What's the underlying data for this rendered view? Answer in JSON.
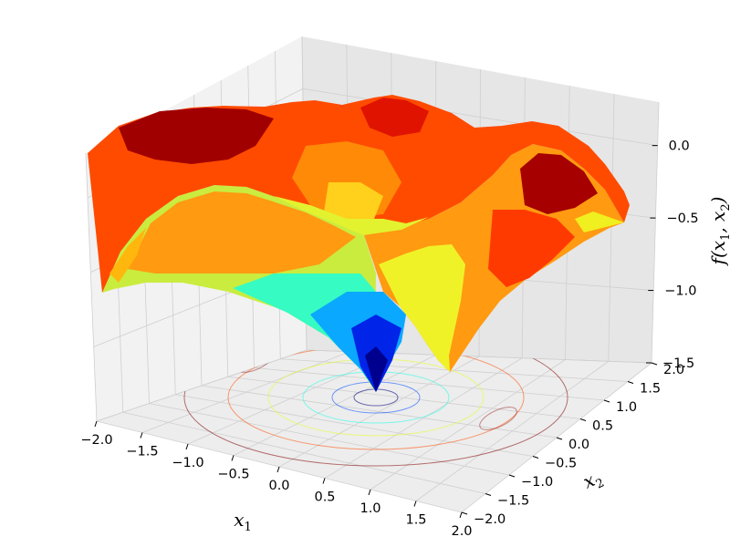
{
  "chart_data": {
    "type": "surface3d",
    "title": "",
    "xlabel": "$x_1$",
    "ylabel": "$x_2$",
    "zlabel": "$f(x_1, x_2)$",
    "xlim": [
      -2.0,
      2.0
    ],
    "ylim": [
      -2.0,
      2.0
    ],
    "zlim": [
      -1.5,
      0.3
    ],
    "x_ticks": [
      "−2.0",
      "−1.5",
      "−1.0",
      "−0.5",
      "0.0",
      "0.5",
      "1.0",
      "1.5",
      "2.0"
    ],
    "y_ticks": [
      "−2.0",
      "−1.5",
      "−1.0",
      "−0.5",
      "0.0",
      "0.5",
      "1.0",
      "1.5",
      "2.0"
    ],
    "z_ticks": [
      "−1.5",
      "−1.0",
      "−0.5",
      "0.0"
    ],
    "surface": {
      "colormap": "jet",
      "min": {
        "x": 0.0,
        "y": 0.0,
        "z": -1.45
      },
      "samples": [
        {
          "x": -2.0,
          "y": -2.0,
          "z": -0.75
        },
        {
          "x": -2.0,
          "y": 0.0,
          "z": -0.05
        },
        {
          "x": -2.0,
          "y": 2.0,
          "z": -0.75
        },
        {
          "x": 0.0,
          "y": -2.0,
          "z": -0.05
        },
        {
          "x": 0.0,
          "y": 2.0,
          "z": -0.05
        },
        {
          "x": 2.0,
          "y": -2.0,
          "z": -0.75
        },
        {
          "x": 2.0,
          "y": 0.0,
          "z": -0.05
        },
        {
          "x": 2.0,
          "y": 2.0,
          "z": -0.75
        },
        {
          "x": -1.2,
          "y": 1.2,
          "z": 0.25
        },
        {
          "x": 1.2,
          "y": -1.2,
          "z": 0.25
        },
        {
          "x": 1.2,
          "y": 1.2,
          "z": -0.3
        },
        {
          "x": -1.2,
          "y": -1.2,
          "z": -0.3
        },
        {
          "x": 1.6,
          "y": -0.6,
          "z": -0.6
        }
      ]
    },
    "contour_projection": {
      "plane_z": -1.5,
      "colormap": "jet",
      "levels": [
        -1.3,
        -1.0,
        -0.7,
        -0.4,
        -0.15,
        0.1
      ]
    },
    "grid": true,
    "view": {
      "elev": 30,
      "azim": -60
    }
  }
}
